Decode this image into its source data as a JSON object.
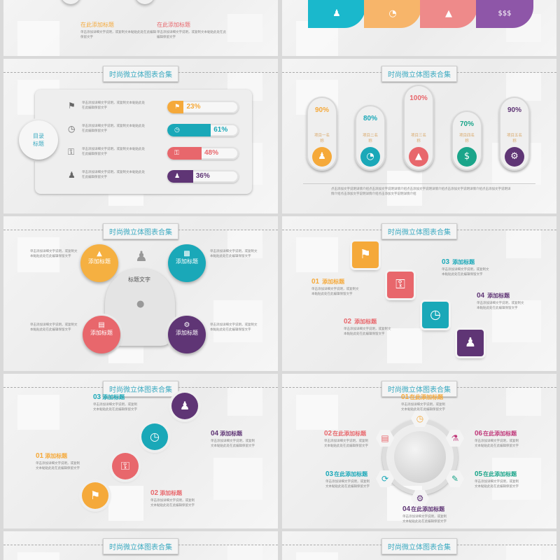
{
  "colors": {
    "orange": "#f5a93a",
    "teal": "#1aa8b8",
    "red": "#e8676c",
    "purple": "#5f3575",
    "green": "#1ba58a",
    "title": "#3aa9c0"
  },
  "slide_title": "时尚微立体图表合集",
  "placeholder": "单击添加详细文字说明，或复制文本黏贴此处在此编辑保留文字",
  "slide_top_left": {
    "headings": [
      "在此添加标题",
      "在此添加标题"
    ]
  },
  "slide_top_right": {
    "icons": [
      "person-icon",
      "pie-chart-icon",
      "growth-chart-icon",
      "money-bags-icon"
    ]
  },
  "slide_bars": {
    "center_label": "目录标题",
    "rows": [
      {
        "icon": "climber-icon",
        "percent": "23%",
        "value": 23,
        "color": "#f5a93a"
      },
      {
        "icon": "clock-icon",
        "percent": "61%",
        "value": 61,
        "color": "#1aa8b8"
      },
      {
        "icon": "key-hand-icon",
        "percent": "48%",
        "value": 48,
        "color": "#e8676c"
      },
      {
        "icon": "team-icon",
        "percent": "36%",
        "value": 36,
        "color": "#5f3575"
      }
    ]
  },
  "slide_pills": {
    "items": [
      {
        "percent": "90%",
        "name": "项目一名称",
        "icon": "person-icon",
        "color": "#f5a93a"
      },
      {
        "percent": "80%",
        "name": "项目二名称",
        "icon": "pie-chart-icon",
        "color": "#1aa8b8"
      },
      {
        "percent": "100%",
        "name": "项目三名称",
        "icon": "growth-chart-icon",
        "color": "#e8676c"
      },
      {
        "percent": "70%",
        "name": "项目四名称",
        "icon": "money-bags-icon",
        "color": "#1ba58a"
      },
      {
        "percent": "90%",
        "name": "项目五名称",
        "icon": "gear-icon",
        "color": "#5f3575"
      }
    ],
    "footer": "点击添加文字说明详情介绍点击添加文字说明详情介绍点击添加文字说明详情介绍点击添加文字说明详情介绍点击添加文字说明详情介绍点击添加文字说明详情介绍点击添加文字说明详情介绍"
  },
  "slide_cycle": {
    "center": "标题文字",
    "items": [
      "添加标题",
      "添加标题",
      "添加标题",
      "添加标题"
    ]
  },
  "slide_steps": {
    "items": [
      {
        "num": "01",
        "label": "添加标题"
      },
      {
        "num": "02",
        "label": "添加标题"
      },
      {
        "num": "03",
        "label": "添加标题"
      },
      {
        "num": "04",
        "label": "添加标题"
      }
    ]
  },
  "slide_circles": {
    "items": [
      {
        "num": "01",
        "label": "添加标题"
      },
      {
        "num": "02",
        "label": "添加标题"
      },
      {
        "num": "03",
        "label": "添加标题"
      },
      {
        "num": "04",
        "label": "添加标题"
      }
    ]
  },
  "slide_globe": {
    "items": [
      {
        "num": "01",
        "label": "在此添加标题"
      },
      {
        "num": "02",
        "label": "在此添加标题"
      },
      {
        "num": "03",
        "label": "在此添加标题"
      },
      {
        "num": "04",
        "label": "在此添加标题"
      },
      {
        "num": "05",
        "label": "在此添加标题"
      },
      {
        "num": "06",
        "label": "在此添加标题"
      }
    ]
  }
}
